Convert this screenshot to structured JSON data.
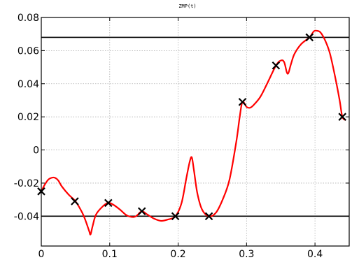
{
  "chart_data": {
    "type": "line",
    "title": "ZMP(t)",
    "xlabel": "",
    "ylabel": "",
    "xlim": [
      0,
      0.45
    ],
    "ylim": [
      -0.058,
      0.08
    ],
    "x_ticks": [
      0,
      0.1,
      0.2,
      0.3,
      0.4
    ],
    "x_tick_labels": [
      "0",
      "0.1",
      "0.2",
      "0.3",
      "0.4"
    ],
    "y_ticks": [
      0.08,
      0.06,
      0.04,
      0.02,
      0,
      -0.02,
      -0.04
    ],
    "y_tick_labels": [
      "0.08",
      "0.06",
      "0.04",
      "0.02",
      "0",
      "-0.02",
      "-0.04"
    ],
    "grid": true,
    "bounds": [
      {
        "y": 0.068
      },
      {
        "y": -0.04
      }
    ],
    "markers": {
      "x": [
        0.0,
        0.049,
        0.098,
        0.147,
        0.196,
        0.245,
        0.294,
        0.343,
        0.392,
        0.44
      ],
      "y": [
        -0.025,
        -0.031,
        -0.032,
        -0.037,
        -0.04,
        -0.04,
        0.029,
        0.051,
        0.068,
        0.02
      ]
    },
    "series": [
      {
        "color": "#ff0000",
        "x": [
          0.0,
          0.005,
          0.01,
          0.015,
          0.02,
          0.025,
          0.03,
          0.04,
          0.05,
          0.06,
          0.065,
          0.07,
          0.072,
          0.075,
          0.08,
          0.09,
          0.098,
          0.105,
          0.115,
          0.125,
          0.135,
          0.14,
          0.147,
          0.155,
          0.165,
          0.175,
          0.185,
          0.196,
          0.205,
          0.212,
          0.217,
          0.22,
          0.223,
          0.228,
          0.235,
          0.245,
          0.255,
          0.265,
          0.275,
          0.285,
          0.29,
          0.294,
          0.3,
          0.305,
          0.31,
          0.32,
          0.33,
          0.343,
          0.35,
          0.355,
          0.36,
          0.365,
          0.37,
          0.38,
          0.392,
          0.398,
          0.402,
          0.408,
          0.415,
          0.422,
          0.43,
          0.436,
          0.44,
          0.445
        ],
        "y": [
          -0.025,
          -0.021,
          -0.018,
          -0.0168,
          -0.0168,
          -0.0185,
          -0.022,
          -0.027,
          -0.031,
          -0.038,
          -0.043,
          -0.049,
          -0.051,
          -0.046,
          -0.039,
          -0.034,
          -0.032,
          -0.033,
          -0.036,
          -0.0395,
          -0.0405,
          -0.0395,
          -0.037,
          -0.039,
          -0.0415,
          -0.0428,
          -0.042,
          -0.04,
          -0.032,
          -0.017,
          -0.007,
          -0.0045,
          -0.012,
          -0.026,
          -0.036,
          -0.04,
          -0.038,
          -0.03,
          -0.018,
          0.005,
          0.02,
          0.029,
          0.026,
          0.0255,
          0.027,
          0.032,
          0.04,
          0.051,
          0.054,
          0.053,
          0.046,
          0.052,
          0.058,
          0.064,
          0.068,
          0.0715,
          0.072,
          0.071,
          0.066,
          0.058,
          0.043,
          0.03,
          0.02,
          0.018
        ]
      }
    ]
  }
}
